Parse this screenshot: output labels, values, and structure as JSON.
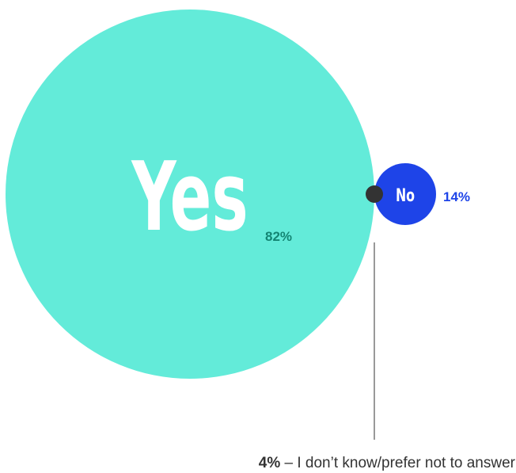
{
  "chart_data": {
    "type": "bubble",
    "series": [
      {
        "label": "Yes",
        "value": 82,
        "value_label": "82%",
        "color": "#63EBD9",
        "label_color": "#ffffff",
        "value_color": "#138573"
      },
      {
        "label": "No",
        "value": 14,
        "value_label": "14%",
        "color": "#1E44E8",
        "label_color": "#ffffff",
        "value_color": "#1E44E8"
      },
      {
        "label": "I don’t know/prefer not to answer",
        "value": 4,
        "value_label": "4%",
        "color": "#333333"
      }
    ],
    "note": {
      "value_label": "4%",
      "separator": " – ",
      "text": "I don’t know/prefer not to answer"
    }
  }
}
